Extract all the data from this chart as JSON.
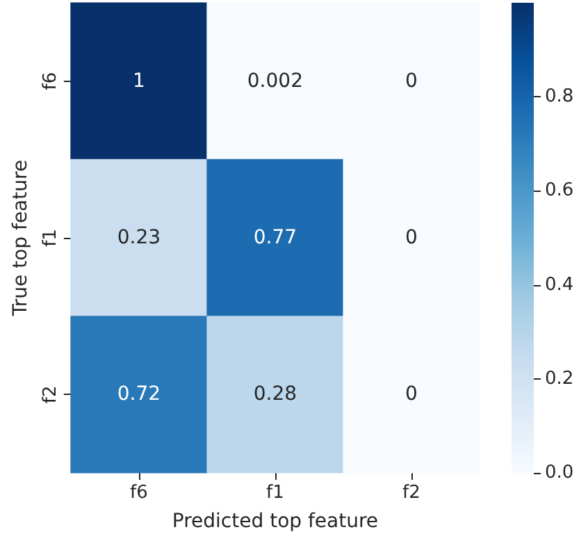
{
  "chart_data": {
    "type": "heatmap",
    "xlabel": "Predicted top feature",
    "ylabel": "True top feature",
    "categories": [
      "f6",
      "f1",
      "f2"
    ],
    "y_categories": [
      "f6",
      "f1",
      "f2"
    ],
    "cells": [
      [
        1,
        0.002,
        0
      ],
      [
        0.23,
        0.77,
        0
      ],
      [
        0.72,
        0.28,
        0
      ]
    ],
    "data_labels": true,
    "clim": [
      0,
      1
    ],
    "cticks": [
      {
        "value": 0,
        "label": "0.0"
      },
      {
        "value": 0.2,
        "label": "0.2"
      },
      {
        "value": 0.4,
        "label": "0.4"
      },
      {
        "value": 0.6,
        "label": "0.6"
      },
      {
        "value": 0.8,
        "label": "0.8"
      }
    ]
  }
}
